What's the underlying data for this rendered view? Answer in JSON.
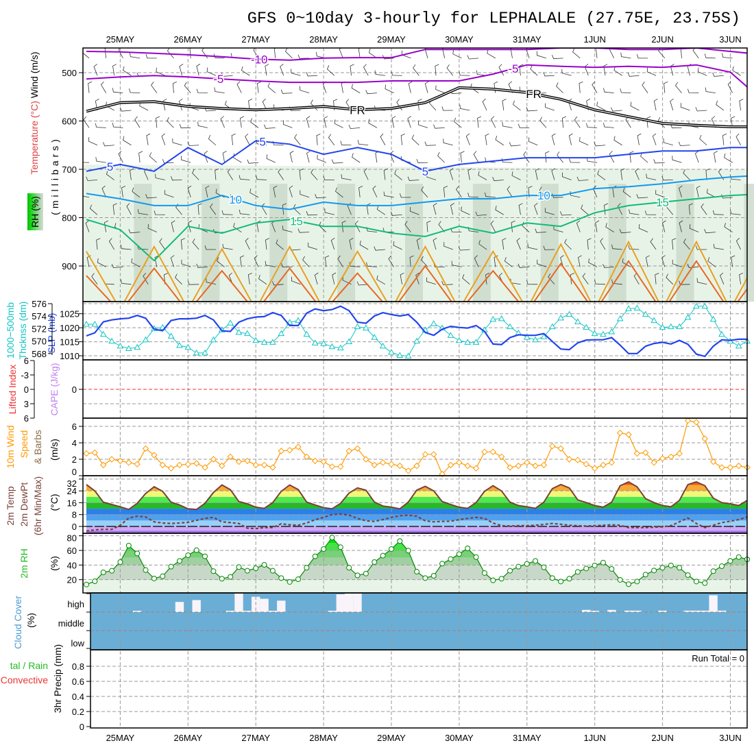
{
  "title": "GFS 0~10day 3-hourly for LEPHALALE (27.75E, 23.75S)",
  "date_labels": [
    "25MAY",
    "26MAY",
    "27MAY",
    "28MAY",
    "29MAY",
    "30MAY",
    "31MAY",
    "1JUN",
    "2JUN",
    "3JUN"
  ],
  "side_labels": {
    "xs_temperature": "Temperature",
    "xs_degc": " (°C)",
    "xs_wind": "Wind (m/s)",
    "xs_rh": "RH (%)",
    "xs_millibars": "(millibars)",
    "thickness_1": "1000−500mb",
    "thickness_2": "Thcknss (dm)",
    "slp": "SLP (mb)",
    "lifted_index": "Lifted Index",
    "cape": "CAPE (J/kg)",
    "wind_1": "10m Wind",
    "wind_2": "Speed",
    "wind_3": "& Barbs",
    "wind_units": "(m/s)",
    "temp_1": "2m Temp",
    "temp_2": "2m DewPt",
    "temp_3": "(6hr Min/Max)",
    "temp_units": "(°C)",
    "rh_1": "2m RH",
    "rh_units": "(%)",
    "cloud_1": "Cloud Cover",
    "cloud_units": "(%)",
    "precip_total": "tal / Rain",
    "precip_conv": "Convective",
    "precip_units": "3hr Precip (mm)"
  },
  "colors": {
    "isotherm_cold": "#9900cc",
    "isotherm_5": "#2244ee",
    "isotherm_10": "#1199ee",
    "isotherm_15": "#11bb77",
    "isotherm_20": "#e8a020",
    "isotherm_25": "#e86820",
    "slp": "#2244ee",
    "thickness": "#11c4c4",
    "lifted_index": "#ee3333",
    "wind": "#ff9900",
    "temp": "#7a4038",
    "rh": "#008800",
    "cloud_bg": "#6aaed6",
    "cloud_bar": "#f8f4fa"
  },
  "chart_data": [
    {
      "type": "contour",
      "name": "cross_section",
      "ylabel": "millibars",
      "yticks": [
        500,
        600,
        700,
        800,
        900
      ],
      "ylim": [
        975,
        450
      ],
      "time_step_hours": 12,
      "isotherms": [
        {
          "label": "-10",
          "color_key": "isotherm_cold",
          "label_at": [
            5.1
          ],
          "pressure": [
            456,
            457,
            460,
            463,
            467,
            472,
            474,
            470,
            469,
            469,
            452,
            452,
            452,
            452,
            449,
            449,
            452,
            452,
            449,
            456,
            463
          ]
        },
        {
          "label": "-5",
          "color_key": "isotherm_cold",
          "label_at": [
            3.9,
            12.6
          ],
          "pressure": [
            513,
            509,
            506,
            509,
            513,
            517,
            520,
            520,
            520,
            517,
            517,
            517,
            503,
            484,
            487,
            489,
            487,
            489,
            484,
            499,
            560
          ]
        },
        {
          "label": "FR",
          "color_key": "freezing",
          "label_at": [
            8.0,
            13.2
          ],
          "pressure": [
            580,
            562,
            560,
            570,
            574,
            577,
            574,
            570,
            577,
            574,
            562,
            531,
            534,
            541,
            555,
            577,
            591,
            605,
            609,
            612,
            612
          ]
        },
        {
          "label": "5",
          "color_key": "isotherm_5",
          "label_at": [
            0.7,
            5.2,
            10.0
          ],
          "pressure": [
            704,
            690,
            704,
            655,
            690,
            641,
            648,
            669,
            655,
            669,
            704,
            690,
            683,
            676,
            676,
            676,
            669,
            662,
            662,
            655,
            655
          ]
        },
        {
          "label": "10",
          "color_key": "isotherm_10",
          "label_at": [
            4.4,
            13.5
          ],
          "pressure": [
            750,
            761,
            775,
            775,
            754,
            775,
            783,
            768,
            775,
            775,
            768,
            761,
            761,
            754,
            754,
            740,
            736,
            730,
            722,
            716,
            712
          ]
        },
        {
          "label": "15",
          "color_key": "isotherm_15",
          "label_at": [
            6.2,
            17.0
          ],
          "pressure": [
            804,
            825,
            889,
            818,
            832,
            811,
            804,
            818,
            818,
            832,
            839,
            818,
            832,
            811,
            818,
            790,
            775,
            768,
            761,
            754,
            751
          ]
        },
        {
          "label": "20",
          "color_key": "isotherm_20",
          "label_at": [],
          "pressure": [
            870,
            990,
            860,
            990,
            865,
            990,
            860,
            990,
            870,
            990,
            860,
            990,
            870,
            990,
            855,
            990,
            850,
            990,
            850,
            990,
            860
          ]
        },
        {
          "label": "25",
          "color_key": "isotherm_25",
          "label_at": [],
          "pressure": [
            920,
            995,
            905,
            995,
            910,
            995,
            905,
            995,
            915,
            995,
            900,
            995,
            910,
            995,
            895,
            995,
            890,
            995,
            890,
            995,
            900
          ]
        }
      ]
    },
    {
      "type": "line",
      "name": "slp_thickness",
      "time_step_hours": 3,
      "thickness_ticks": [
        576,
        574,
        572,
        570,
        568
      ],
      "slp_ticks": [
        1025,
        1020,
        1015,
        1010
      ],
      "series": [
        {
          "name": "1000-500mb Thickness (dm)",
          "values": [
            572.7,
            572.7,
            571.1,
            570.0,
            569.2,
            568.8,
            569.0,
            570.2,
            572.0,
            572.2,
            570.8,
            569.3,
            569.0,
            568.1,
            568.1,
            570.2,
            571.8,
            572.9,
            571.4,
            571.2,
            570.1,
            569.8,
            569.8,
            571.2,
            573.0,
            573.3,
            571.1,
            569.7,
            569.6,
            569.1,
            568.9,
            569.9,
            572.3,
            572.1,
            570.6,
            569.2,
            568.2,
            567.7,
            567.6,
            570.0,
            571.8,
            572.8,
            572.1,
            570.9,
            570.1,
            569.8,
            569.8,
            571.8,
            573.5,
            573.6,
            572.3,
            571.3,
            570.6,
            570.2,
            570.7,
            572.3,
            573.7,
            574.3,
            573.1,
            572.2,
            571.2,
            571.1,
            571.5,
            573.6,
            575.2,
            575.3,
            574.3,
            573.3,
            572.2,
            572.3,
            572.3,
            573.8,
            575.6,
            575.6,
            573.5,
            571.1,
            570.0,
            569.2,
            570.0
          ]
        },
        {
          "name": "SLP (mb)",
          "values": [
            1017.1,
            1018.2,
            1022.1,
            1022.8,
            1023.2,
            1023.4,
            1024.4,
            1023.4,
            1019.5,
            1018.9,
            1022.6,
            1023.2,
            1023.2,
            1023.4,
            1024.4,
            1022.8,
            1018.9,
            1018.7,
            1022.0,
            1023.2,
            1023.8,
            1024.0,
            1025.4,
            1024.4,
            1020.8,
            1020.8,
            1025.2,
            1026.7,
            1026.1,
            1026.5,
            1027.7,
            1026.1,
            1022.0,
            1021.6,
            1024.2,
            1025.4,
            1024.7,
            1024.2,
            1024.7,
            1022.0,
            1018.3,
            1017.3,
            1019.5,
            1020.5,
            1020.1,
            1019.9,
            1020.8,
            1018.7,
            1014.2,
            1014.0,
            1016.5,
            1017.5,
            1017.3,
            1017.3,
            1017.9,
            1015.1,
            1012.4,
            1012.2,
            1014.6,
            1015.6,
            1015.7,
            1015.7,
            1016.5,
            1013.8,
            1010.8,
            1010.8,
            1013.4,
            1014.4,
            1014.8,
            1014.2,
            1015.5,
            1014.1,
            1010.6,
            1009.8,
            1013.4,
            1015.7,
            1015.5,
            1015.9,
            1015.9
          ]
        }
      ]
    },
    {
      "type": "line",
      "name": "lifted_index_cape",
      "li_ticks": [
        "6",
        "-3",
        "0",
        "3",
        "6"
      ],
      "cape_ticks": [
        "0"
      ],
      "series": [
        {
          "name": "Lifted Index",
          "values": []
        },
        {
          "name": "CAPE",
          "values": []
        }
      ]
    },
    {
      "type": "line",
      "name": "wind_10m",
      "yticks": [
        6,
        4,
        2,
        0
      ],
      "ylim": [
        0,
        6.5
      ],
      "series": [
        {
          "name": "10m Wind Speed (m/s)",
          "values": [
            2.7,
            2.8,
            1.3,
            2.0,
            1.8,
            1.6,
            1.4,
            3.3,
            2.5,
            1.3,
            0.9,
            1.3,
            1.4,
            1.5,
            1.0,
            2.0,
            1.2,
            2.3,
            1.7,
            1.8,
            1.3,
            1.3,
            1.0,
            3.0,
            3.1,
            3.5,
            2.3,
            1.8,
            1.7,
            1.1,
            1.1,
            3.0,
            3.3,
            2.0,
            1.3,
            1.6,
            1.4,
            1.2,
            0.6,
            1.2,
            2.6,
            2.6,
            0.2,
            1.3,
            1.6,
            1.2,
            0.9,
            2.9,
            2.9,
            2.3,
            1.0,
            1.2,
            1.6,
            1.2,
            1.3,
            3.6,
            3.3,
            2.0,
            1.9,
            1.4,
            0.9,
            1.3,
            1.6,
            5.2,
            5.0,
            2.7,
            2.8,
            1.6,
            2.1,
            2.3,
            2.7,
            6.7,
            6.5,
            4.5,
            1.7,
            1.0,
            1.0,
            1.2,
            1.0
          ]
        }
      ]
    },
    {
      "type": "area",
      "name": "temp_2m",
      "yticks": [
        32,
        24,
        16,
        8,
        0
      ],
      "ylim": [
        -4.6,
        34
      ],
      "series": [
        {
          "name": "2m Temp",
          "values": [
            28.3,
            24.0,
            16.4,
            14.8,
            13.3,
            11.5,
            15.6,
            22.2,
            26.8,
            23.7,
            16.4,
            14.5,
            11.9,
            11.5,
            15.6,
            22.9,
            28.0,
            24.8,
            16.8,
            15.3,
            13.0,
            12.2,
            16.1,
            23.7,
            28.0,
            24.9,
            16.5,
            14.5,
            12.7,
            11.9,
            15.6,
            22.5,
            26.0,
            24.5,
            16.5,
            13.8,
            13.0,
            11.9,
            16.5,
            24.5,
            27.1,
            24.0,
            16.8,
            14.8,
            13.0,
            12.2,
            16.1,
            23.7,
            27.5,
            24.0,
            16.4,
            14.1,
            13.3,
            12.2,
            16.4,
            25.5,
            28.3,
            26.0,
            17.9,
            16.1,
            14.1,
            13.0,
            16.4,
            27.5,
            30.1,
            26.8,
            18.8,
            16.1,
            14.1,
            13.3,
            17.6,
            28.3,
            30.1,
            27.5,
            19.1,
            16.1,
            15.3,
            14.1,
            17.6
          ]
        },
        {
          "name": "2m DewPt",
          "values": [
            -3.1,
            -2.3,
            -2.0,
            -2.0,
            0.8,
            5.7,
            6.9,
            6.4,
            3.1,
            2.3,
            2.0,
            2.3,
            2.8,
            4.1,
            5.4,
            6.1,
            3.1,
            2.6,
            2.0,
            -1.2,
            -1.5,
            -0.8,
            -0.8,
            1.8,
            1.1,
            0.8,
            2.3,
            4.6,
            6.1,
            8.0,
            8.4,
            7.6,
            5.4,
            3.8,
            3.4,
            4.6,
            6.1,
            7.2,
            7.6,
            6.9,
            3.8,
            3.1,
            3.4,
            3.5,
            4.6,
            5.4,
            6.1,
            5.4,
            2.3,
            0.5,
            0.3,
            0.5,
            0.5,
            0.8,
            1.4,
            2.0,
            1.5,
            0.8,
            0.5,
            0.3,
            0.5,
            0.8,
            1.1,
            0.8,
            -0.8,
            -0.8,
            -0.8,
            -0.5,
            -0.3,
            0.5,
            3.1,
            5.7,
            2.0,
            -0.8,
            0.8,
            2.6,
            3.5,
            4.6,
            6.4
          ]
        }
      ]
    },
    {
      "type": "area",
      "name": "rh_2m",
      "yticks": [
        80,
        60,
        40,
        20
      ],
      "series": [
        {
          "name": "2m RH (%)",
          "values": [
            13.4,
            17.8,
            30.0,
            32.2,
            44.1,
            66.6,
            55.9,
            33.1,
            21.6,
            24.7,
            37.8,
            45.6,
            53.4,
            60.3,
            51.9,
            31.6,
            21.3,
            23.8,
            37.2,
            32.2,
            35.6,
            40.3,
            32.2,
            22.2,
            16.9,
            20.6,
            36.3,
            51.9,
            61.9,
            77.5,
            64.4,
            36.3,
            25.9,
            28.4,
            44.1,
            52.8,
            61.9,
            72.8,
            59.7,
            30.9,
            22.2,
            25.3,
            41.9,
            48.1,
            55.0,
            62.8,
            50.9,
            29.1,
            19.1,
            21.3,
            32.2,
            37.8,
            41.6,
            45.6,
            36.9,
            22.2,
            17.5,
            21.3,
            30.6,
            35.3,
            39.4,
            43.4,
            34.7,
            19.7,
            13.8,
            17.5,
            26.9,
            32.5,
            36.3,
            39.4,
            36.3,
            26.3,
            17.5,
            15.3,
            31.6,
            38.4,
            45.6,
            50.9,
            47.8
          ]
        }
      ]
    },
    {
      "type": "bar",
      "name": "cloud_cover",
      "yticks": [
        "high",
        "middle",
        "low"
      ],
      "series": [
        {
          "name": "high",
          "values": [
            0,
            0,
            0,
            0,
            0,
            0,
            4,
            0,
            0,
            0,
            0,
            55,
            0,
            65,
            0,
            0,
            0,
            4,
            100,
            4,
            83,
            72,
            4,
            62,
            0,
            0,
            0,
            0,
            0,
            4,
            96,
            100,
            100,
            0,
            0,
            0,
            0,
            0,
            0,
            0,
            0,
            0,
            0,
            0,
            0,
            0,
            0,
            0,
            0,
            0,
            0,
            0,
            0,
            0,
            0,
            0,
            0,
            0,
            0,
            12,
            4,
            0,
            12,
            0,
            8,
            8,
            0,
            0,
            8,
            0,
            0,
            8,
            8,
            8,
            91,
            8,
            0,
            0,
            0
          ]
        },
        {
          "name": "middle",
          "values": []
        },
        {
          "name": "low",
          "values": []
        }
      ]
    },
    {
      "type": "bar",
      "name": "precip_3hr",
      "yticks": [
        "0.8",
        "0.6",
        "0.4",
        "0.2",
        "0"
      ],
      "ylim": [
        0,
        0.95
      ],
      "run_total_label": "Run Total = 0",
      "series": [
        {
          "name": "Total / Rain",
          "values": []
        },
        {
          "name": "Convective",
          "values": []
        }
      ]
    }
  ]
}
